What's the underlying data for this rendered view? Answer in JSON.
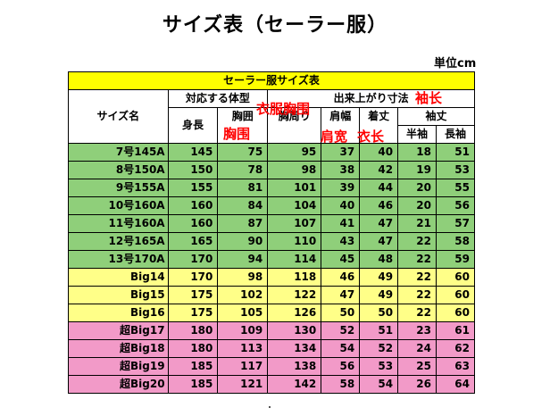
{
  "title": "サイズ表（セーラー服）",
  "unit": "単位cm",
  "table": {
    "caption": "セーラー服サイズ表",
    "headers": {
      "size_name": "サイズ名",
      "body_group": "対応する体型",
      "finished_group": "出来上がり寸法",
      "height": "身長",
      "chest": "胸囲",
      "chest_around": "胸周り",
      "shoulder": "肩幅",
      "length": "着丈",
      "sleeve_group": "袖丈",
      "half_sleeve": "半袖",
      "long_sleeve": "長袖"
    },
    "rows": [
      {
        "name": "7号145A",
        "group": "green",
        "v": [
          145,
          75,
          95,
          37,
          40,
          18,
          51
        ]
      },
      {
        "name": "8号150A",
        "group": "green",
        "v": [
          150,
          78,
          98,
          38,
          42,
          19,
          53
        ]
      },
      {
        "name": "9号155A",
        "group": "green",
        "v": [
          155,
          81,
          101,
          39,
          44,
          20,
          55
        ]
      },
      {
        "name": "10号160A",
        "group": "green",
        "v": [
          160,
          84,
          104,
          40,
          46,
          20,
          56
        ]
      },
      {
        "name": "11号160A",
        "group": "green",
        "v": [
          160,
          87,
          107,
          41,
          47,
          21,
          57
        ]
      },
      {
        "name": "12号165A",
        "group": "green",
        "v": [
          165,
          90,
          110,
          43,
          47,
          22,
          58
        ]
      },
      {
        "name": "13号170A",
        "group": "green",
        "v": [
          170,
          94,
          114,
          45,
          48,
          22,
          59
        ]
      },
      {
        "name": "Big14",
        "group": "yellow",
        "v": [
          170,
          98,
          118,
          46,
          49,
          22,
          60
        ]
      },
      {
        "name": "Big15",
        "group": "yellow",
        "v": [
          175,
          102,
          122,
          47,
          49,
          22,
          60
        ]
      },
      {
        "name": "Big16",
        "group": "yellow",
        "v": [
          175,
          105,
          126,
          50,
          50,
          22,
          60
        ]
      },
      {
        "name": "超Big17",
        "group": "pink",
        "v": [
          180,
          109,
          130,
          52,
          51,
          23,
          61
        ]
      },
      {
        "name": "超Big18",
        "group": "pink",
        "v": [
          180,
          113,
          134,
          54,
          52,
          24,
          62
        ]
      },
      {
        "name": "超Big19",
        "group": "pink",
        "v": [
          185,
          117,
          138,
          56,
          53,
          25,
          63
        ]
      },
      {
        "name": "超Big20",
        "group": "pink",
        "v": [
          185,
          121,
          142,
          58,
          54,
          26,
          64
        ]
      }
    ]
  },
  "annotations": {
    "garment_chest": "衣服胸围",
    "chest": "胸围",
    "shoulder_width": "肩宽",
    "garment_length": "衣长",
    "sleeve_length": "袖长"
  },
  "colors": {
    "caption_bg": "#ffff00",
    "green_rows": "#8fcf7a",
    "yellow_rows": "#ffff88",
    "pink_rows": "#f29ac8",
    "annotation": "#ff0000"
  }
}
